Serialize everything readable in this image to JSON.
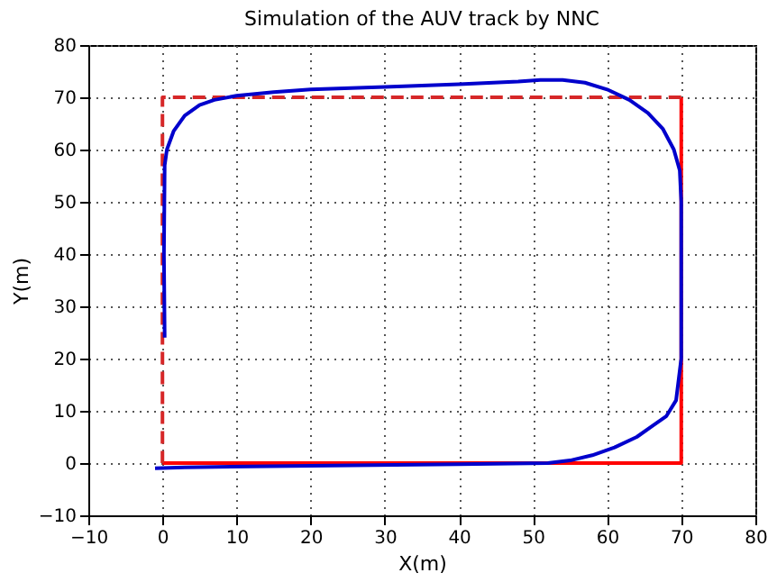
{
  "chart_data": {
    "type": "line",
    "title": "Simulation of the AUV track by NNC",
    "xlabel": "X(m)",
    "ylabel": "Y(m)",
    "xlim": [
      -10,
      80
    ],
    "ylim": [
      -10,
      80
    ],
    "xticks": [
      -10,
      0,
      10,
      20,
      30,
      40,
      50,
      60,
      70,
      80
    ],
    "yticks": [
      -10,
      0,
      10,
      20,
      30,
      40,
      50,
      60,
      70,
      80
    ],
    "grid": true,
    "series": [
      {
        "color": "#ff0000",
        "line_style": "solid",
        "x": [
          0,
          70,
          70
        ],
        "values": [
          0,
          0,
          70
        ]
      },
      {
        "color": "#d62728",
        "line_style": "dashed",
        "x": [
          70,
          0,
          0
        ],
        "values": [
          70,
          70,
          0
        ]
      },
      {
        "color": "#0000cc",
        "line_style": "solid",
        "x": [
          -1,
          3,
          20,
          40,
          52,
          55,
          58,
          61,
          64,
          66,
          68,
          69.3,
          70,
          70,
          70,
          69.8,
          69,
          67.5,
          65.5,
          63,
          60,
          57,
          54,
          51,
          48,
          40,
          30,
          20,
          15,
          10,
          7,
          5,
          3,
          1.5,
          0.6,
          0.3,
          0.2,
          0.3
        ],
        "values": [
          -1,
          -0.8,
          -0.5,
          -0.2,
          0,
          0.5,
          1.5,
          3,
          5,
          7,
          9,
          12,
          20,
          33,
          50,
          56,
          60,
          64,
          67,
          69.5,
          71.5,
          72.8,
          73.3,
          73.3,
          73,
          72.5,
          72,
          71.5,
          71,
          70.3,
          69.5,
          68.5,
          66.5,
          63.5,
          60,
          57,
          40,
          24
        ]
      }
    ]
  }
}
